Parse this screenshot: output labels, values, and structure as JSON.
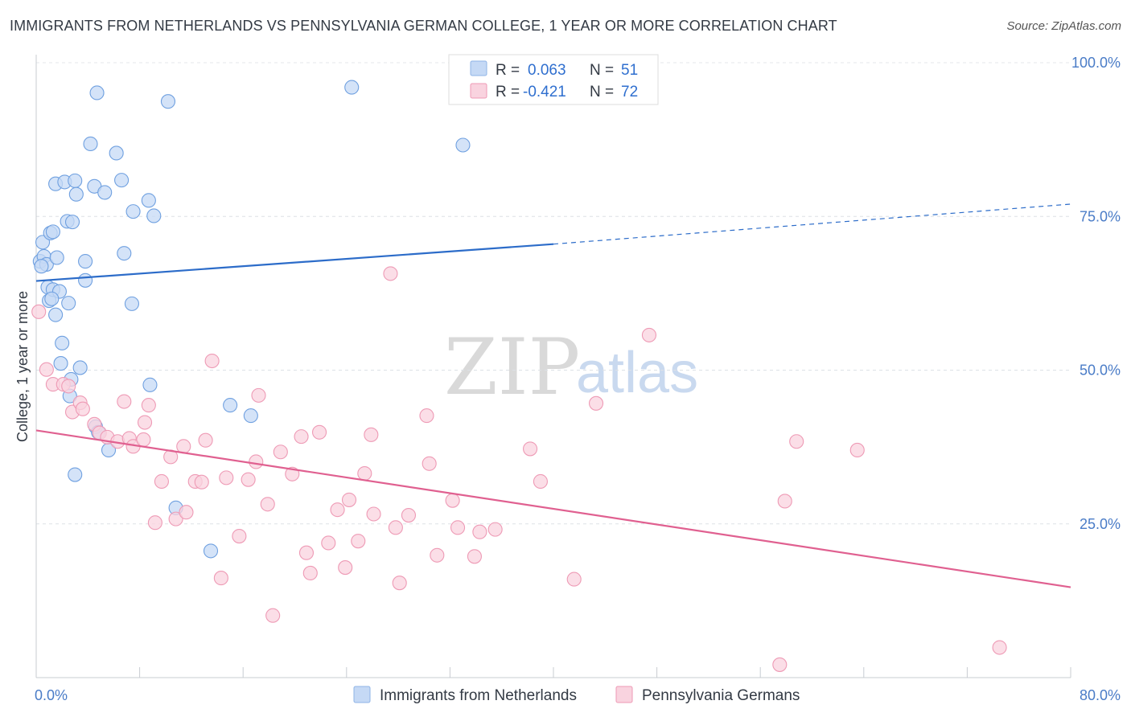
{
  "header": {
    "title": "IMMIGRANTS FROM NETHERLANDS VS PENNSYLVANIA GERMAN COLLEGE, 1 YEAR OR MORE CORRELATION CHART",
    "source": "Source: ZipAtlas.com"
  },
  "watermark": {
    "zip": "ZIP",
    "atlas": "atlas"
  },
  "legend": {
    "r_label": "R =",
    "n_label": "N =",
    "rows": [
      {
        "r": "0.063",
        "n": "51",
        "color": "#a9c8f0"
      },
      {
        "r": "-0.421",
        "n": "72",
        "color": "#f7b9cb"
      }
    ]
  },
  "chart_data": {
    "type": "scatter",
    "xlabel": "",
    "ylabel": "College, 1 year or more",
    "xlim": [
      0,
      80
    ],
    "ylim": [
      0,
      100
    ],
    "x_tick_labels": [
      "0.0%",
      "80.0%"
    ],
    "y_tick_labels": [
      "25.0%",
      "50.0%",
      "75.0%",
      "100.0%"
    ],
    "y_ticks": [
      25,
      50,
      75,
      100
    ],
    "grid": true,
    "legend_position": "top-center",
    "series": [
      {
        "name": "Immigrants from Netherlands",
        "color": "#6fa0e0",
        "fill": "#c5d9f5",
        "trend": {
          "x0": 0,
          "y0": 64.5,
          "x1": 40,
          "y1": 70.5,
          "dashed_to_x": 80,
          "dashed_to_y": 77,
          "color": "#2c6cc9"
        },
        "points": [
          [
            0.3,
            67.7
          ],
          [
            0.5,
            70.8
          ],
          [
            0.6,
            68.5
          ],
          [
            0.8,
            67.2
          ],
          [
            0.9,
            63.5
          ],
          [
            1.0,
            61.3
          ],
          [
            1.1,
            72.3
          ],
          [
            1.3,
            72.5
          ],
          [
            1.3,
            63.1
          ],
          [
            1.5,
            80.3
          ],
          [
            1.5,
            59.0
          ],
          [
            1.6,
            68.3
          ],
          [
            1.8,
            62.8
          ],
          [
            1.9,
            51.1
          ],
          [
            2.0,
            54.4
          ],
          [
            2.2,
            80.6
          ],
          [
            2.4,
            74.2
          ],
          [
            2.5,
            60.9
          ],
          [
            2.6,
            45.8
          ],
          [
            2.7,
            48.5
          ],
          [
            2.8,
            74.1
          ],
          [
            3.0,
            80.8
          ],
          [
            3.1,
            78.6
          ],
          [
            3.4,
            50.4
          ],
          [
            3.0,
            33.0
          ],
          [
            3.8,
            64.6
          ],
          [
            3.8,
            67.7
          ],
          [
            4.2,
            86.8
          ],
          [
            4.5,
            79.9
          ],
          [
            4.6,
            40.8
          ],
          [
            4.8,
            39.9
          ],
          [
            4.7,
            95.1
          ],
          [
            5.3,
            78.9
          ],
          [
            5.6,
            37.0
          ],
          [
            6.2,
            85.3
          ],
          [
            6.6,
            80.9
          ],
          [
            6.8,
            69.0
          ],
          [
            7.4,
            60.8
          ],
          [
            7.5,
            75.8
          ],
          [
            8.7,
            77.6
          ],
          [
            8.8,
            47.6
          ],
          [
            9.1,
            75.1
          ],
          [
            10.2,
            93.7
          ],
          [
            10.8,
            27.6
          ],
          [
            13.5,
            20.6
          ],
          [
            15.0,
            44.3
          ],
          [
            16.6,
            42.6
          ],
          [
            24.4,
            96.0
          ],
          [
            33.0,
            86.6
          ],
          [
            0.4,
            66.9
          ],
          [
            1.2,
            61.6
          ]
        ]
      },
      {
        "name": "Pennsylvania Germans",
        "color": "#ee9ab5",
        "fill": "#f9d3df",
        "trend": {
          "x0": 0,
          "y0": 40.2,
          "x1": 80,
          "y1": 14.7,
          "color": "#e06090"
        },
        "points": [
          [
            0.2,
            59.5
          ],
          [
            0.8,
            50.1
          ],
          [
            1.3,
            47.7
          ],
          [
            2.1,
            47.7
          ],
          [
            2.5,
            47.4
          ],
          [
            2.8,
            43.2
          ],
          [
            3.4,
            44.7
          ],
          [
            3.6,
            43.7
          ],
          [
            4.5,
            41.2
          ],
          [
            4.9,
            39.8
          ],
          [
            5.5,
            39.1
          ],
          [
            6.3,
            38.4
          ],
          [
            6.8,
            44.9
          ],
          [
            7.2,
            38.9
          ],
          [
            7.5,
            37.6
          ],
          [
            8.3,
            38.7
          ],
          [
            8.4,
            41.5
          ],
          [
            8.7,
            44.3
          ],
          [
            9.2,
            25.2
          ],
          [
            9.7,
            31.9
          ],
          [
            10.4,
            35.9
          ],
          [
            10.8,
            25.8
          ],
          [
            11.4,
            37.6
          ],
          [
            11.6,
            26.9
          ],
          [
            12.3,
            31.9
          ],
          [
            12.8,
            31.8
          ],
          [
            13.1,
            38.6
          ],
          [
            13.6,
            51.5
          ],
          [
            14.3,
            16.2
          ],
          [
            14.7,
            32.5
          ],
          [
            15.7,
            23.0
          ],
          [
            16.4,
            32.2
          ],
          [
            17.0,
            35.1
          ],
          [
            17.2,
            45.9
          ],
          [
            17.9,
            28.2
          ],
          [
            18.3,
            10.1
          ],
          [
            18.9,
            36.7
          ],
          [
            19.8,
            33.1
          ],
          [
            20.5,
            39.2
          ],
          [
            20.9,
            20.3
          ],
          [
            21.2,
            17.0
          ],
          [
            21.9,
            39.9
          ],
          [
            22.6,
            21.9
          ],
          [
            23.3,
            27.3
          ],
          [
            23.9,
            17.9
          ],
          [
            24.2,
            28.9
          ],
          [
            24.9,
            22.2
          ],
          [
            25.4,
            33.2
          ],
          [
            25.9,
            39.5
          ],
          [
            26.1,
            26.6
          ],
          [
            27.8,
            24.4
          ],
          [
            28.1,
            15.4
          ],
          [
            28.8,
            26.4
          ],
          [
            30.2,
            42.6
          ],
          [
            30.4,
            34.8
          ],
          [
            31.0,
            19.9
          ],
          [
            32.2,
            28.8
          ],
          [
            32.6,
            24.4
          ],
          [
            33.9,
            19.7
          ],
          [
            34.3,
            23.7
          ],
          [
            35.5,
            24.1
          ],
          [
            27.4,
            65.7
          ],
          [
            38.2,
            37.2
          ],
          [
            39.0,
            31.9
          ],
          [
            41.6,
            16.0
          ],
          [
            43.3,
            44.6
          ],
          [
            47.4,
            55.7
          ],
          [
            57.5,
            2.1
          ],
          [
            57.9,
            28.7
          ],
          [
            58.8,
            38.4
          ],
          [
            63.5,
            37.0
          ],
          [
            74.5,
            4.9
          ]
        ]
      }
    ]
  }
}
